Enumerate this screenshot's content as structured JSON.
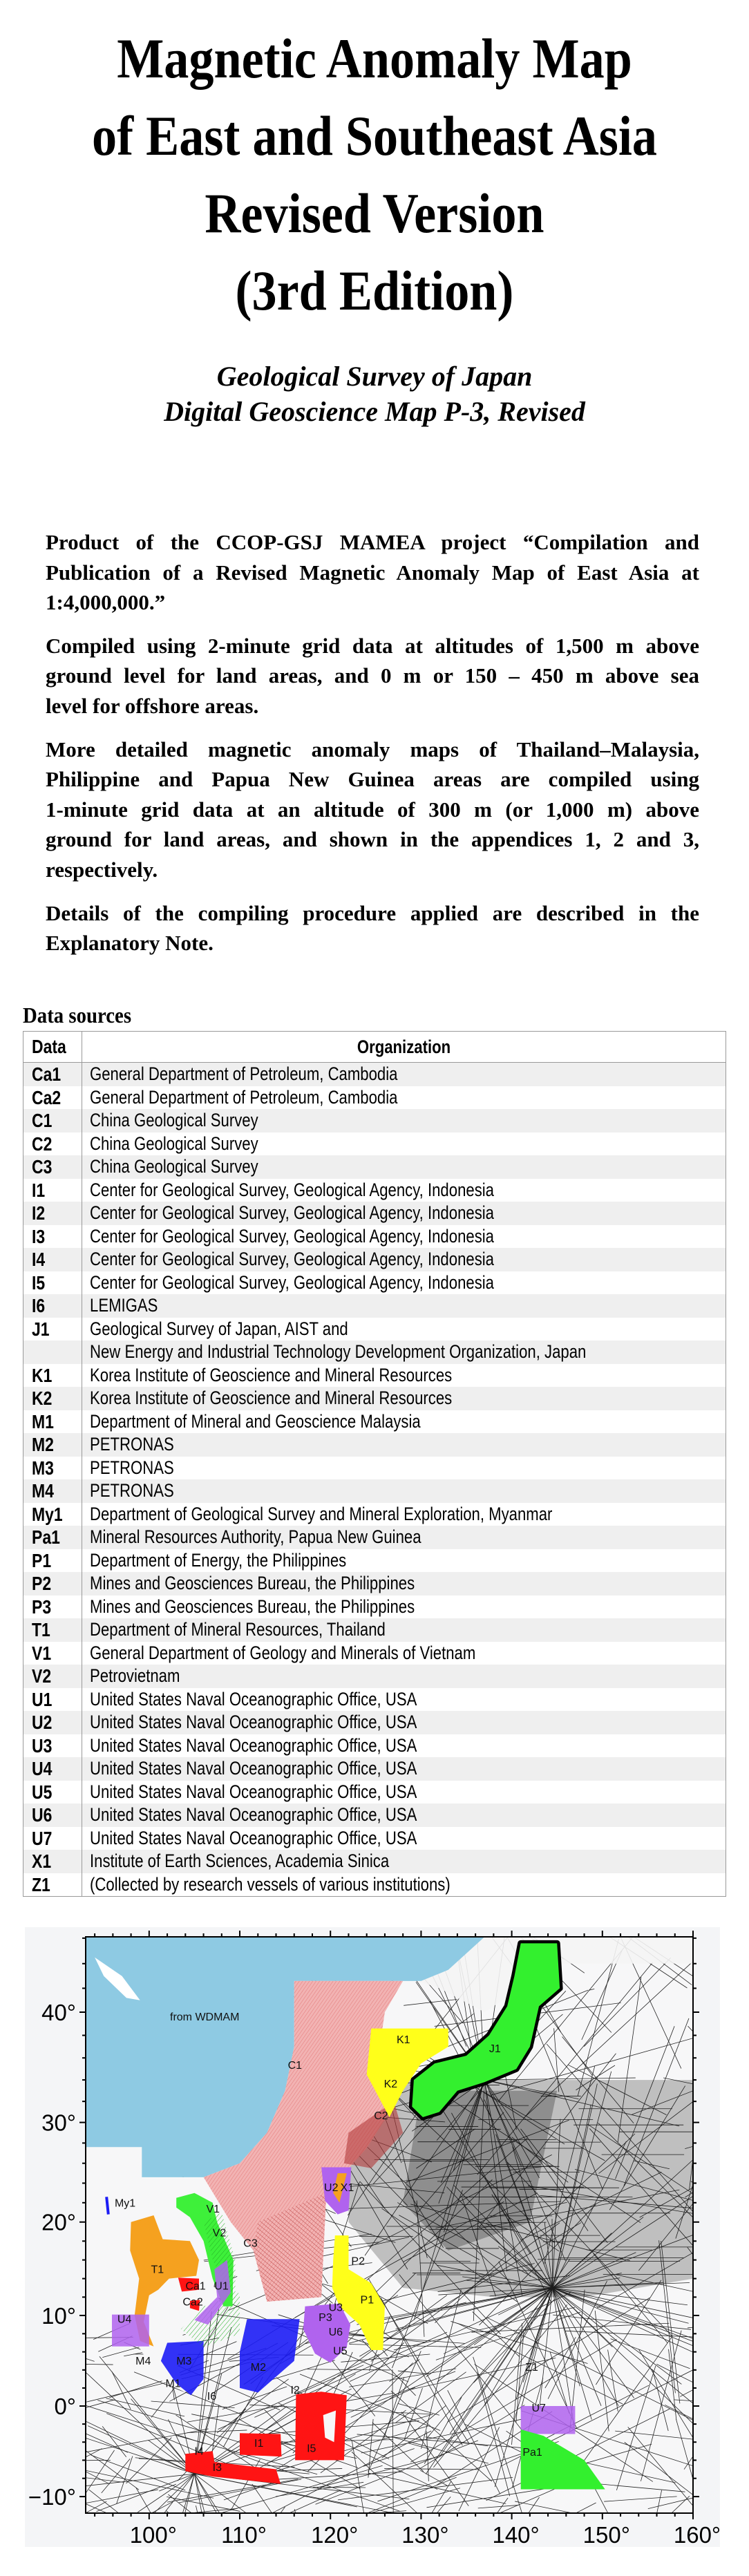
{
  "title": {
    "lines": [
      "Magnetic Anomaly Map",
      "of East and Southeast Asia",
      "Revised Version",
      "(3rd Edition)"
    ]
  },
  "subtitle": {
    "lines": [
      "Geological Survey of Japan",
      "Digital Geoscience Map P-3, Revised"
    ]
  },
  "paragraphs": [
    [
      "Product of the CCOP-GSJ MAMEA project “Compilation and",
      "Publication of a Revised Magnetic Anomaly Map of East Asia at",
      "1:4,000,000.”"
    ],
    [
      "Compiled using 2-minute grid data at altitudes of 1,500 m above",
      "ground level for land areas, and 0 m or 150 – 450 m above sea",
      "level for offshore areas."
    ],
    [
      "More detailed magnetic anomaly maps of Thailand–Malaysia,",
      "Philippine and Papua New Guinea areas are compiled using",
      "1-minute grid data at an altitude of 300 m (or 1,000 m) above",
      "ground for land areas, and shown in the appendices 1, 2 and 3,",
      "respectively."
    ],
    [
      "Details of the compiling procedure applied are described in the",
      "Explanatory Note."
    ]
  ],
  "data_sources": {
    "heading": "Data sources",
    "columns": [
      "Data",
      "Organization"
    ],
    "rows": [
      {
        "code": "Ca1",
        "org": "General Department of Petroleum, Cambodia"
      },
      {
        "code": "Ca2",
        "org": "General Department of Petroleum, Cambodia"
      },
      {
        "code": "C1",
        "org": "China Geological Survey"
      },
      {
        "code": "C2",
        "org": "China Geological Survey"
      },
      {
        "code": "C3",
        "org": "China Geological Survey"
      },
      {
        "code": "I1",
        "org": "Center for Geological Survey, Geological Agency, Indonesia"
      },
      {
        "code": "I2",
        "org": "Center for Geological Survey, Geological Agency, Indonesia"
      },
      {
        "code": "I3",
        "org": "Center for Geological Survey, Geological Agency, Indonesia"
      },
      {
        "code": "I4",
        "org": "Center for Geological Survey, Geological Agency, Indonesia"
      },
      {
        "code": "I5",
        "org": "Center for Geological Survey, Geological Agency, Indonesia"
      },
      {
        "code": "I6",
        "org": "LEMIGAS"
      },
      {
        "code": "J1",
        "org": "Geological Survey of Japan, AIST and"
      },
      {
        "code": "",
        "org": "New Energy and Industrial Technology Development Organization, Japan"
      },
      {
        "code": "K1",
        "org": "Korea Institute of Geoscience and Mineral Resources"
      },
      {
        "code": "K2",
        "org": "Korea Institute of Geoscience and Mineral Resources"
      },
      {
        "code": "M1",
        "org": "Department of Mineral and Geoscience Malaysia"
      },
      {
        "code": "M2",
        "org": "PETRONAS"
      },
      {
        "code": "M3",
        "org": "PETRONAS"
      },
      {
        "code": "M4",
        "org": "PETRONAS"
      },
      {
        "code": "My1",
        "org": "Department of Geological Survey and Mineral Exploration, Myanmar"
      },
      {
        "code": "Pa1",
        "org": "Mineral Resources Authority, Papua New Guinea"
      },
      {
        "code": "P1",
        "org": "Department of Energy, the Philippines"
      },
      {
        "code": "P2",
        "org": "Mines and Geosciences Bureau, the Philippines"
      },
      {
        "code": "P3",
        "org": "Mines and Geosciences Bureau, the Philippines"
      },
      {
        "code": "T1",
        "org": "Department of Mineral Resources, Thailand"
      },
      {
        "code": "V1",
        "org": "General Department of Geology and Minerals of Vietnam"
      },
      {
        "code": "V2",
        "org": "Petrovietnam"
      },
      {
        "code": "U1",
        "org": "United States Naval Oceanographic Office, USA"
      },
      {
        "code": "U2",
        "org": "United States Naval Oceanographic Office, USA"
      },
      {
        "code": "U3",
        "org": "United States Naval Oceanographic Office, USA"
      },
      {
        "code": "U4",
        "org": "United States Naval Oceanographic Office, USA"
      },
      {
        "code": "U5",
        "org": "United States Naval Oceanographic Office, USA"
      },
      {
        "code": "U6",
        "org": "United States Naval Oceanographic Office, USA"
      },
      {
        "code": "U7",
        "org": "United States Naval Oceanographic Office, USA"
      },
      {
        "code": "X1",
        "org": "Institute of Earth Sciences, Academia Sinica"
      },
      {
        "code": "Z1",
        "org": "(Collected by research vessels of various institutions)"
      }
    ]
  },
  "map": {
    "lon_range": [
      93,
      160
    ],
    "lat_range": [
      -11.8,
      46.1
    ],
    "projection": "mercator",
    "lat_ticks": [
      {
        "value": 40,
        "label": "40°"
      },
      {
        "value": 30,
        "label": "30°"
      },
      {
        "value": 20,
        "label": "20°"
      },
      {
        "value": 10,
        "label": "10°"
      },
      {
        "value": 0,
        "label": "0°"
      },
      {
        "value": -10,
        "label": "−10°"
      }
    ],
    "lon_ticks": [
      {
        "value": 100,
        "label": "100°"
      },
      {
        "value": 110,
        "label": "110°"
      },
      {
        "value": 120,
        "label": "120°"
      },
      {
        "value": 130,
        "label": "130°"
      },
      {
        "value": 140,
        "label": "140°"
      },
      {
        "value": 150,
        "label": "150°"
      },
      {
        "value": 160,
        "label": "160°"
      }
    ],
    "wdmam_label": "from WDMAM",
    "area_labels": [
      "C1",
      "K1",
      "K2",
      "J1",
      "C2",
      "U2",
      "X1",
      "My1",
      "V1",
      "V2",
      "C3",
      "T1",
      "P2",
      "Ca1",
      "U1",
      "P1",
      "Ca2",
      "U3",
      "P3",
      "U4",
      "U6",
      "U5",
      "M4",
      "M3",
      "M2",
      "Z1",
      "M1",
      "I2",
      "I6",
      "U7",
      "I1",
      "I5",
      "I4",
      "I3",
      "Pa1"
    ],
    "colors": {
      "wdmam": "#8ecae3",
      "china": "#f2b3b3",
      "china_dark": "#b23a3a",
      "korea": "#ffff1a",
      "japan": "#33f02e",
      "thailand": "#f5a11f",
      "usa": "#b063ee",
      "malaysia": "#1c1cf5",
      "indonesia": "#ff1414",
      "vietnam": "#3ef03a",
      "philippines": "#ffff1a",
      "tracks": "#000000",
      "background": "#f4f5f7"
    }
  }
}
